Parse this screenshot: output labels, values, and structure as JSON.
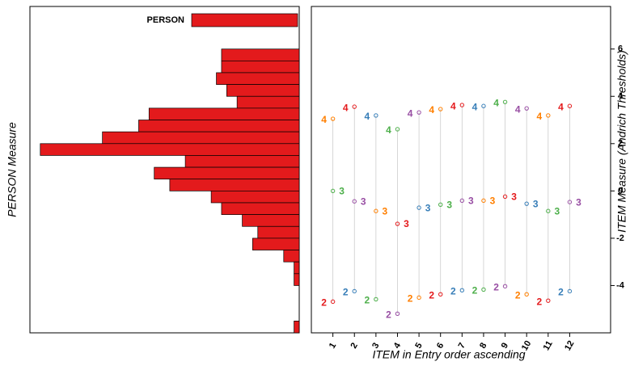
{
  "chart_data": [
    {
      "type": "histogram",
      "orientation": "horizontal",
      "ylabel": "PERSON Measure",
      "legend": "PERSON",
      "color": "#e31a1c",
      "bins": [
        6,
        5.5,
        5,
        4.5,
        4,
        3.5,
        3,
        2.5,
        2,
        1.5,
        1,
        0.5,
        0,
        -0.5,
        -1,
        -1.5,
        -2,
        -2.5,
        -3,
        -3.5,
        -4,
        -4.5,
        -5,
        -5.5,
        -6
      ],
      "values": [
        15,
        15,
        16,
        14,
        12,
        29,
        31,
        38,
        50,
        22,
        28,
        25,
        17,
        15,
        11,
        8,
        9,
        3,
        1,
        1,
        0,
        0,
        0,
        1
      ],
      "xlim": [
        0,
        52
      ],
      "ylim": [
        -6,
        7.8
      ]
    },
    {
      "type": "scatter",
      "xlabel": "ITEM in Entry order ascending",
      "ylabel": "ITEM Measure (Andrich Thresholds)",
      "x": [
        1,
        2,
        3,
        4,
        5,
        6,
        7,
        8,
        9,
        10,
        11,
        12
      ],
      "xlim": [
        0,
        13.9
      ],
      "xticks": [
        1,
        2,
        3,
        4,
        5,
        6,
        7,
        8,
        9,
        10,
        11,
        12
      ],
      "ylim": [
        -6,
        7.8
      ],
      "yticks": [
        6,
        4,
        2,
        0,
        -2,
        -4
      ],
      "series": [
        {
          "name": "2",
          "values": [
            -4.68,
            -4.24,
            -4.58,
            -5.19,
            -4.51,
            -4.37,
            -4.2,
            -4.17,
            -4.03,
            -4.37,
            -4.64,
            -4.24
          ],
          "colors": [
            "#e41a1c",
            "#377eb8",
            "#4daf4a",
            "#984ea3",
            "#ff7f00",
            "#e41a1c",
            "#377eb8",
            "#4daf4a",
            "#984ea3",
            "#ff7f00",
            "#e41a1c",
            "#377eb8"
          ]
        },
        {
          "name": "3",
          "values": [
            0,
            -0.44,
            -0.85,
            -1.39,
            -0.71,
            -0.58,
            -0.41,
            -0.41,
            -0.24,
            -0.54,
            -0.85,
            -0.47
          ],
          "colors": [
            "#4daf4a",
            "#984ea3",
            "#ff7f00",
            "#e41a1c",
            "#377eb8",
            "#4daf4a",
            "#984ea3",
            "#ff7f00",
            "#e41a1c",
            "#377eb8",
            "#4daf4a",
            "#984ea3"
          ]
        },
        {
          "name": "4",
          "values": [
            3.05,
            3.56,
            3.19,
            2.61,
            3.32,
            3.46,
            3.63,
            3.59,
            3.76,
            3.49,
            3.19,
            3.59
          ],
          "colors": [
            "#ff7f00",
            "#e41a1c",
            "#377eb8",
            "#4daf4a",
            "#984ea3",
            "#ff7f00",
            "#e41a1c",
            "#377eb8",
            "#4daf4a",
            "#984ea3",
            "#ff7f00",
            "#e41a1c"
          ]
        }
      ]
    }
  ]
}
